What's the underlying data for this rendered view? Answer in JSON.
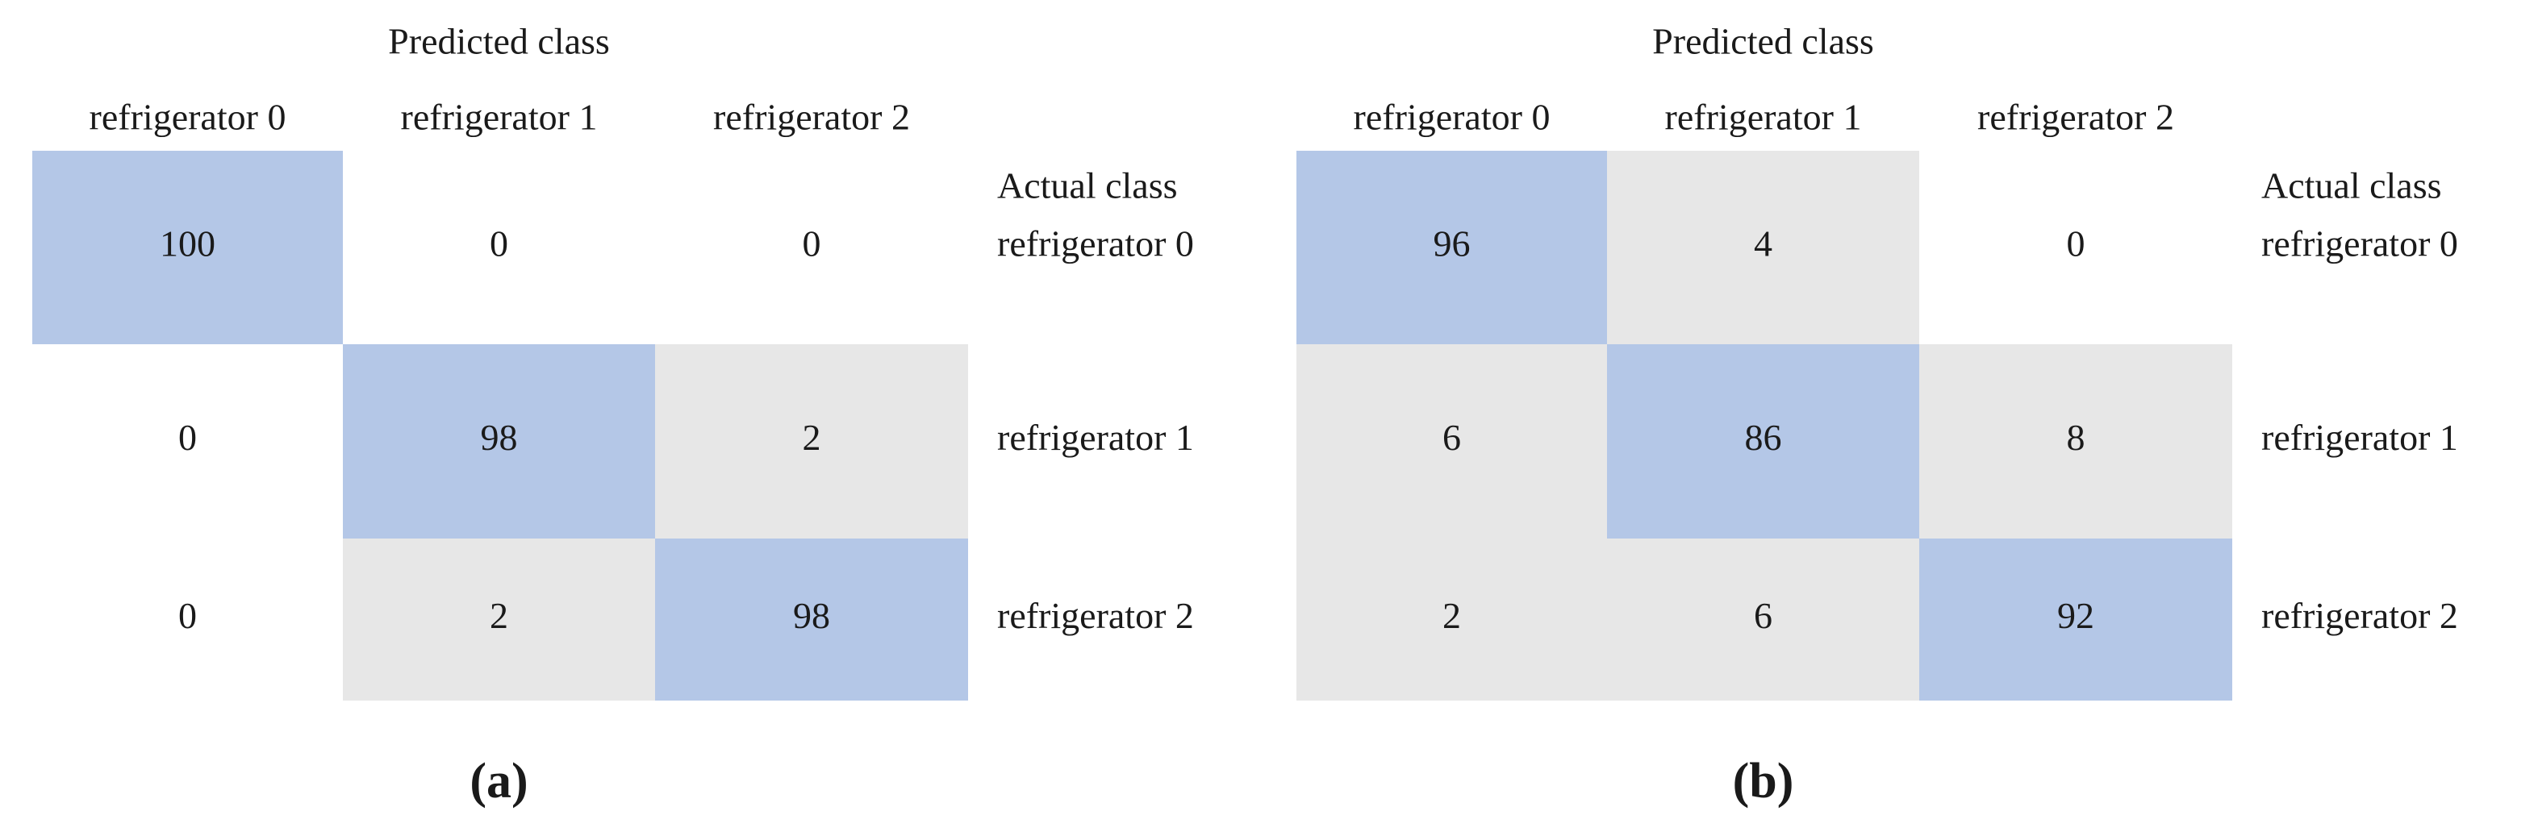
{
  "chart_data": [
    {
      "type": "heatmap",
      "label": "(a)",
      "x_label": "Predicted class",
      "y_label": "Actual class",
      "x_categories": [
        "refrigerator 0",
        "refrigerator 1",
        "refrigerator 2"
      ],
      "y_categories": [
        "refrigerator 0",
        "refrigerator 1",
        "refrigerator 2"
      ],
      "values": [
        [
          100,
          0,
          0
        ],
        [
          0,
          98,
          2
        ],
        [
          0,
          2,
          98
        ]
      ],
      "colors": {
        "correct": "#b4c7e7",
        "error": "#e7e7e7"
      }
    },
    {
      "type": "heatmap",
      "label": "(b)",
      "x_label": "Predicted class",
      "y_label": "Actual class",
      "x_categories": [
        "refrigerator 0",
        "refrigerator 1",
        "refrigerator 2"
      ],
      "y_categories": [
        "refrigerator 0",
        "refrigerator 1",
        "refrigerator 2"
      ],
      "values": [
        [
          96,
          4,
          0
        ],
        [
          6,
          86,
          8
        ],
        [
          2,
          6,
          92
        ]
      ],
      "colors": {
        "correct": "#b4c7e7",
        "error": "#e7e7e7"
      }
    }
  ]
}
